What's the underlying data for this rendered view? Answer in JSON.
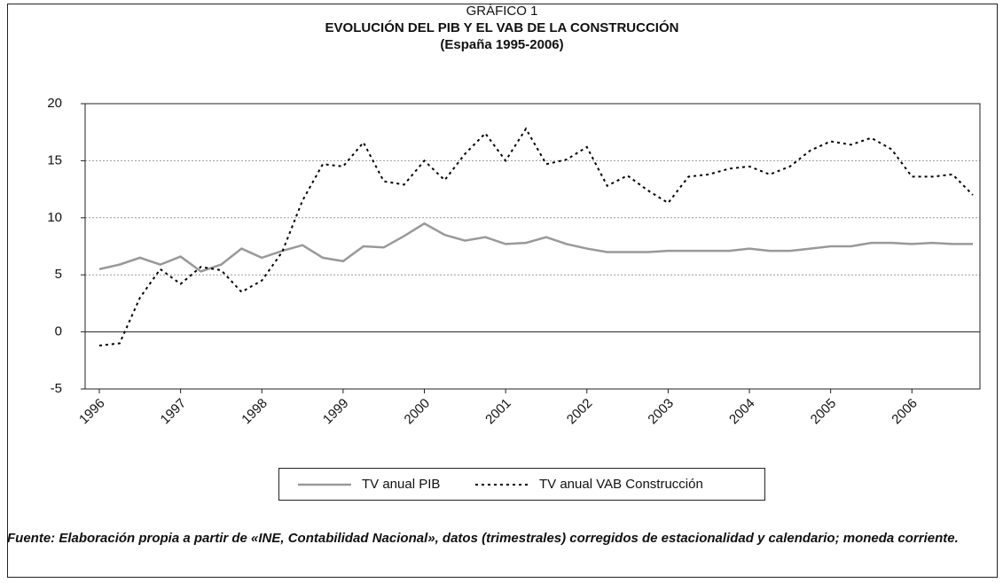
{
  "chart_data": {
    "type": "line",
    "kicker": "GRÁFICO 1",
    "title": "EVOLUCIÓN DEL PIB Y EL VAB DE LA CONSTRUCCIÓN",
    "subtitle": "(España 1995-2006)",
    "categories": [
      "1996",
      null,
      null,
      null,
      "1997",
      null,
      null,
      null,
      "1998",
      null,
      null,
      null,
      "1999",
      null,
      null,
      null,
      "2000",
      null,
      null,
      null,
      "2001",
      null,
      null,
      null,
      "2002",
      null,
      null,
      null,
      "2003",
      null,
      null,
      null,
      "2004",
      null,
      null,
      null,
      "2005",
      null,
      null,
      null,
      "2006",
      null,
      null,
      null
    ],
    "series": [
      {
        "name": "TV anual PIB",
        "color": "#999999",
        "dash": "solid",
        "values": [
          5.5,
          5.9,
          6.5,
          5.9,
          6.6,
          5.3,
          5.9,
          7.3,
          6.5,
          7.1,
          7.6,
          6.5,
          6.2,
          7.5,
          7.4,
          8.4,
          9.5,
          8.5,
          8.0,
          8.3,
          7.7,
          7.8,
          8.3,
          7.7,
          7.3,
          7.0,
          7.0,
          7.0,
          7.1,
          7.1,
          7.1,
          7.1,
          7.3,
          7.1,
          7.1,
          7.3,
          7.5,
          7.5,
          7.8,
          7.8,
          7.7,
          7.8,
          7.7,
          7.7
        ]
      },
      {
        "name": "TV anual VAB Construcción",
        "color": "#000000",
        "dash": "dotted",
        "values": [
          -1.2,
          -1.0,
          3.0,
          5.5,
          4.2,
          5.7,
          5.4,
          3.5,
          4.5,
          7.0,
          11.5,
          14.7,
          14.5,
          16.6,
          13.2,
          12.9,
          15.0,
          13.3,
          15.6,
          17.4,
          15.0,
          17.8,
          14.7,
          15.1,
          16.2,
          12.8,
          13.7,
          12.4,
          11.3,
          13.6,
          13.8,
          14.3,
          14.5,
          13.8,
          14.5,
          15.9,
          16.7,
          16.4,
          17.0,
          16.0,
          13.6,
          13.6,
          13.8,
          12.0
        ]
      }
    ],
    "ylim": [
      -5,
      20
    ],
    "yticks": [
      -5,
      0,
      5,
      10,
      15,
      20
    ],
    "grid": true,
    "legend": "bottom",
    "note": "Fuente: Elaboración propia a partir de «INE, Contabilidad Nacional», datos (trimestrales) corregidos de estacionalidad y calendario; moneda corriente."
  }
}
